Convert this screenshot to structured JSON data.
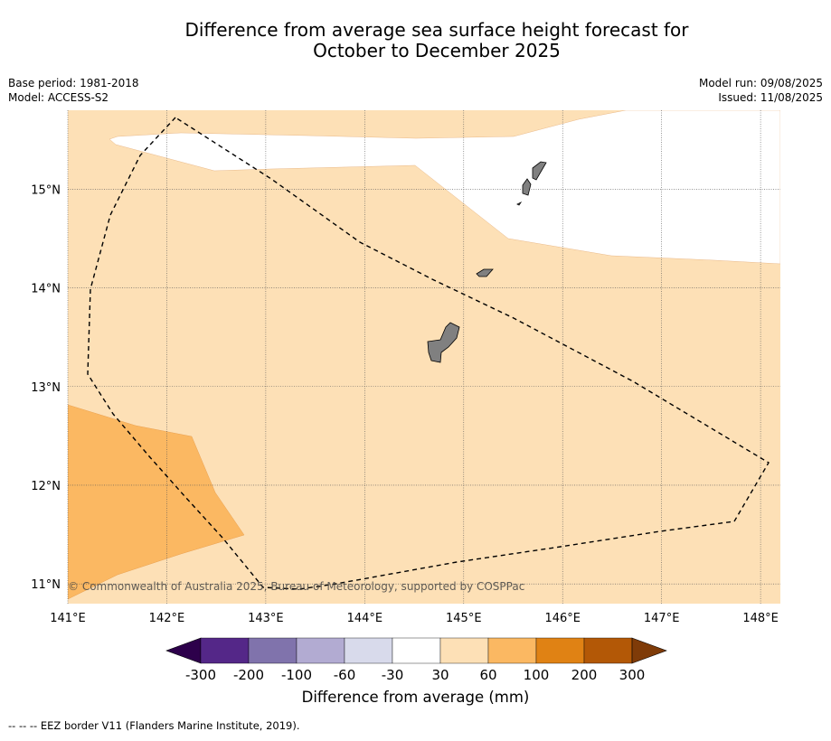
{
  "title": {
    "line1": "Difference from average sea surface height forecast for",
    "line2": "October to December 2025"
  },
  "meta_left": {
    "base_period": "Base period: 1981-2018",
    "model": "Model: ACCESS-S2"
  },
  "meta_right": {
    "model_run": "Model run: 09/08/2025",
    "issued": "Issued: 11/08/2025"
  },
  "map": {
    "lon_range": [
      141.0,
      148.2
    ],
    "lat_range": [
      10.8,
      15.8
    ],
    "lon_ticks": [
      {
        "value": 141,
        "label": "141°E"
      },
      {
        "value": 142,
        "label": "142°E"
      },
      {
        "value": 143,
        "label": "143°E"
      },
      {
        "value": 144,
        "label": "144°E"
      },
      {
        "value": 145,
        "label": "145°E"
      },
      {
        "value": 146,
        "label": "146°E"
      },
      {
        "value": 147,
        "label": "147°E"
      },
      {
        "value": 148,
        "label": "148°E"
      }
    ],
    "lat_ticks": [
      {
        "value": 15,
        "label": "15°N"
      },
      {
        "value": 14,
        "label": "14°N"
      },
      {
        "value": 13,
        "label": "13°N"
      },
      {
        "value": 12,
        "label": "12°N"
      },
      {
        "value": 11,
        "label": "11°N"
      }
    ],
    "colors": {
      "band_30_60": "#fde0b6",
      "band_60_100": "#fbb862",
      "land": "#808080",
      "gridline": "#555555"
    },
    "copyright": "© Commonwealth of Australia 2025, Bureau of Meteorology, supported by COSPPac"
  },
  "colorbar": {
    "colors": [
      "#2d004b",
      "#542788",
      "#8073ac",
      "#b2abd2",
      "#d8daeb",
      "#ffffff",
      "#fde0b6",
      "#fbb862",
      "#e08214",
      "#b35806",
      "#7f3b08"
    ],
    "labels": [
      "-300",
      "-200",
      "-100",
      "-60",
      "-30",
      "30",
      "60",
      "100",
      "200",
      "300"
    ],
    "title": "Difference from average (mm)"
  },
  "footer": {
    "legend_symbol": "--  --  --",
    "legend_text": "EEZ border V11 (Flanders Marine Institute, 2019)."
  }
}
